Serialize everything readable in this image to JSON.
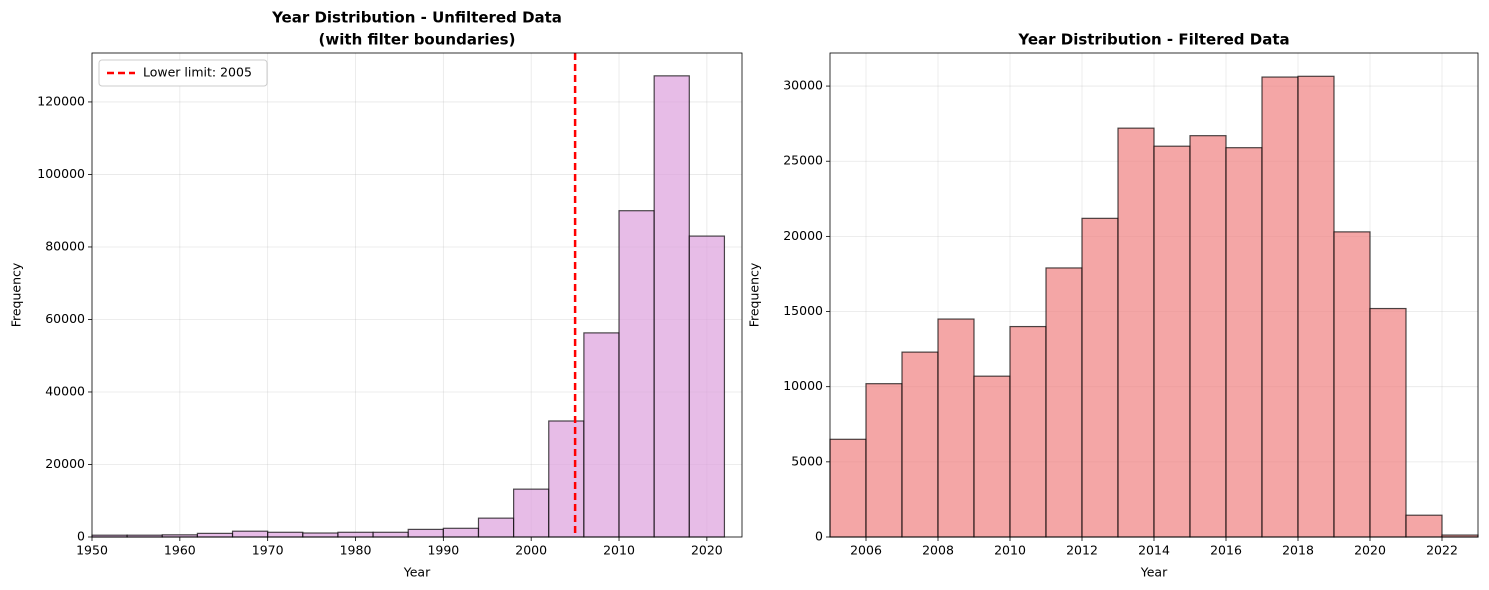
{
  "chart_data": [
    {
      "type": "histogram",
      "title": [
        "Year Distribution - Unfiltered Data",
        "(with filter boundaries)"
      ],
      "x_label": "Year",
      "y_label": "Frequency",
      "bins": [
        1950,
        1954,
        1958,
        1962,
        1966,
        1970,
        1974,
        1978,
        1982,
        1986,
        1990,
        1994,
        1998,
        2002,
        2006,
        2010,
        2014,
        2018,
        2022
      ],
      "values": [
        500,
        500,
        600,
        1000,
        1600,
        1300,
        1100,
        1300,
        1300,
        2100,
        2400,
        5200,
        13200,
        32000,
        56300,
        90000,
        127200,
        83000
      ],
      "color": "#dda0dd",
      "edgecolor": "#000000",
      "alpha": 0.7,
      "xlim": [
        1950,
        2024
      ],
      "xticks": [
        1950,
        1960,
        1970,
        1980,
        1990,
        2000,
        2010,
        2020
      ],
      "ylim": [
        0,
        133500
      ],
      "yticks": [
        0,
        20000,
        40000,
        60000,
        80000,
        100000,
        120000
      ],
      "grid": true,
      "vline": {
        "value": 2005,
        "label": "Lower limit: 2005",
        "color": "#ff0000"
      },
      "legend_loc": "upper left"
    },
    {
      "type": "histogram",
      "title": [
        "Year Distribution - Filtered Data"
      ],
      "x_label": "Year",
      "y_label": "Frequency",
      "bins": [
        2005,
        2006,
        2007,
        2008,
        2009,
        2010,
        2011,
        2012,
        2013,
        2014,
        2015,
        2016,
        2017,
        2018,
        2019,
        2020,
        2021,
        2022,
        2023
      ],
      "values": [
        6500,
        10200,
        12300,
        14500,
        10700,
        14000,
        17900,
        21200,
        27200,
        26000,
        26700,
        25900,
        30600,
        30650,
        20300,
        15200,
        1450,
        130
      ],
      "color": "#f08080",
      "edgecolor": "#000000",
      "alpha": 0.7,
      "xlim": [
        2005,
        2023
      ],
      "xticks": [
        2006,
        2008,
        2010,
        2012,
        2014,
        2016,
        2018,
        2020,
        2022
      ],
      "ylim": [
        0,
        32200
      ],
      "yticks": [
        0,
        5000,
        10000,
        15000,
        20000,
        25000,
        30000
      ],
      "grid": true
    }
  ]
}
